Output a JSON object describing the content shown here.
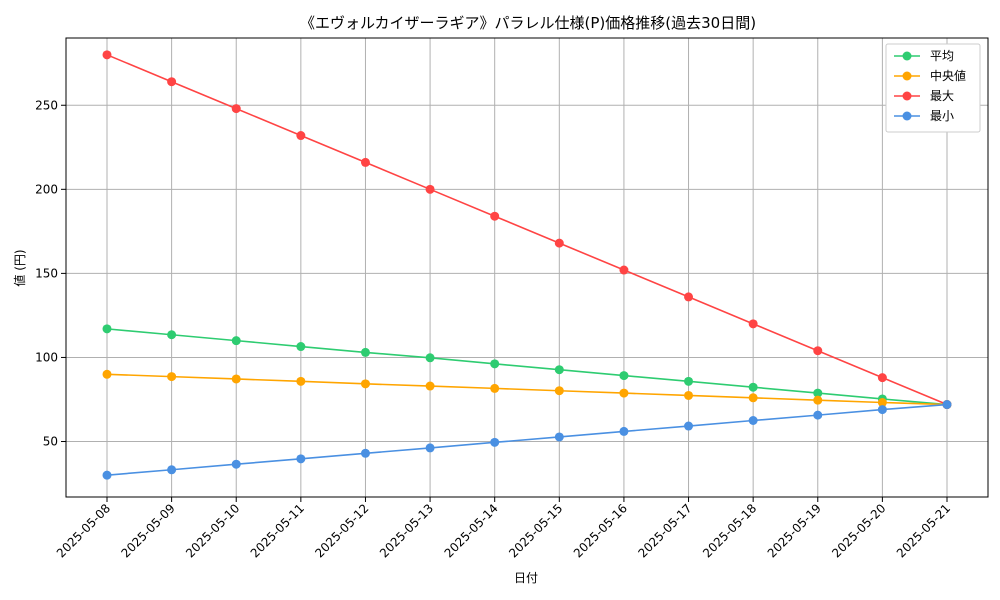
{
  "chart_data": {
    "type": "line",
    "title": "《エヴォルカイザーラギア》パラレル仕様(P)価格推移(過去30日間)",
    "xlabel": "日付",
    "ylabel": "値 (円)",
    "x": [
      "2025-05-08",
      "2025-05-09",
      "2025-05-10",
      "2025-05-11",
      "2025-05-12",
      "2025-05-13",
      "2025-05-14",
      "2025-05-15",
      "2025-05-16",
      "2025-05-17",
      "2025-05-18",
      "2025-05-19",
      "2025-05-20",
      "2025-05-21"
    ],
    "ylim": [
      17,
      290
    ],
    "yticks": [
      50,
      100,
      150,
      200,
      250
    ],
    "grid": true,
    "legend_position": "top-right",
    "series": [
      {
        "name": "平均",
        "color": "#2ecc71",
        "values": [
          117,
          113.5,
          110,
          106.5,
          103,
          99.8,
          96.2,
          92.7,
          89.2,
          85.8,
          82.3,
          78.8,
          75.3,
          72
        ]
      },
      {
        "name": "中央値",
        "color": "#ffa500",
        "values": [
          90,
          88.6,
          87.2,
          85.8,
          84.3,
          83,
          81.6,
          80.2,
          78.8,
          77.4,
          76,
          74.6,
          73.2,
          72
        ]
      },
      {
        "name": "最大",
        "color": "#ff4444",
        "values": [
          280,
          264,
          248,
          232,
          216,
          200,
          184,
          168,
          152,
          136,
          120,
          104,
          88,
          72
        ]
      },
      {
        "name": "最小",
        "color": "#4a90e2",
        "values": [
          30,
          33.2,
          36.5,
          39.7,
          43,
          46.2,
          49.5,
          52.7,
          56,
          59.2,
          62.5,
          65.7,
          69,
          72
        ]
      }
    ]
  }
}
